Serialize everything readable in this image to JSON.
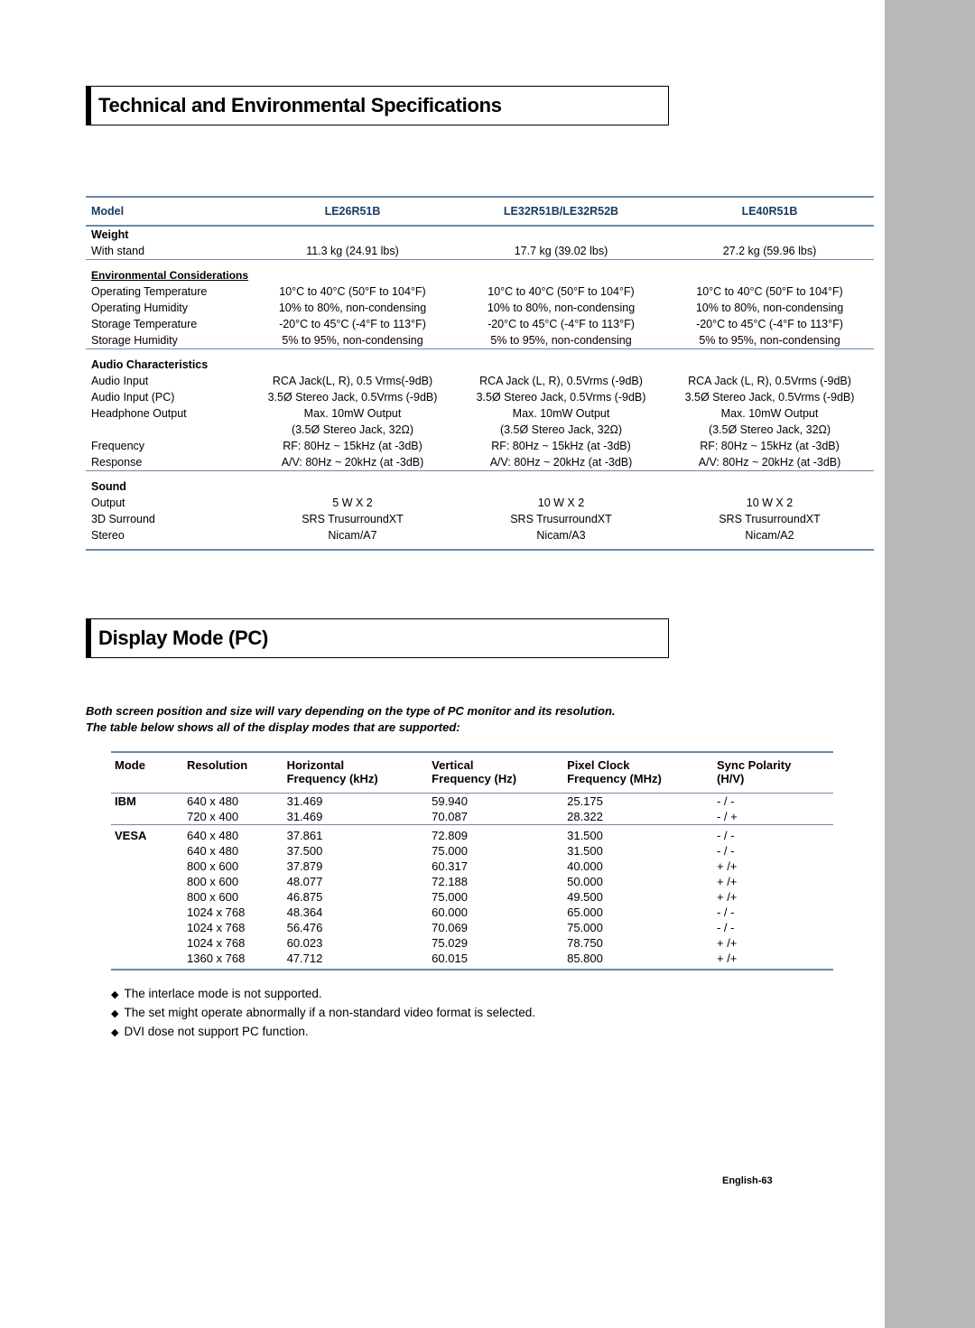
{
  "page": {
    "number": "English-63"
  },
  "section1": {
    "title": "Technical and Environmental Specifications",
    "headers": [
      "Model",
      "LE26R51B",
      "LE32R51B/LE32R52B",
      "LE40R51B"
    ],
    "groups": [
      {
        "type": "head",
        "title": "Weight",
        "rows": [
          {
            "label": "With stand",
            "vals": [
              "11.3 kg (24.91 lbs)",
              "17.7 kg (39.02 lbs)",
              "27.2 kg (59.96 lbs)"
            ]
          }
        ]
      },
      {
        "type": "subhead",
        "title": "Environmental Considerations",
        "rows": [
          {
            "label": "Operating Temperature",
            "vals": [
              "10°C to 40°C (50°F to 104°F)",
              "10°C to 40°C (50°F to 104°F)",
              "10°C to 40°C (50°F to 104°F)"
            ]
          },
          {
            "label": "Operating Humidity",
            "vals": [
              "10% to 80%, non-condensing",
              "10% to 80%, non-condensing",
              "10% to 80%, non-condensing"
            ]
          },
          {
            "label": "Storage Temperature",
            "vals": [
              "-20°C to 45°C (-4°F to 113°F)",
              "-20°C to 45°C (-4°F to 113°F)",
              "-20°C to 45°C (-4°F to 113°F)"
            ]
          },
          {
            "label": "Storage Humidity",
            "vals": [
              "5% to 95%, non-condensing",
              "5% to 95%, non-condensing",
              "5% to 95%, non-condensing"
            ]
          }
        ]
      },
      {
        "type": "head",
        "title": "Audio Characteristics",
        "rows": [
          {
            "label": "Audio Input",
            "vals": [
              "RCA Jack(L, R), 0.5 Vrms(-9dB)",
              "RCA Jack (L, R), 0.5Vrms (-9dB)",
              "RCA Jack (L, R), 0.5Vrms (-9dB)"
            ]
          },
          {
            "label": "Audio Input (PC)",
            "vals": [
              "3.5Ø Stereo Jack, 0.5Vrms (-9dB)",
              "3.5Ø Stereo Jack, 0.5Vrms (-9dB)",
              "3.5Ø Stereo Jack, 0.5Vrms (-9dB)"
            ]
          },
          {
            "label": "Headphone Output",
            "vals": [
              "Max. 10mW Output",
              "Max. 10mW Output",
              "Max. 10mW Output"
            ]
          },
          {
            "label": "",
            "vals": [
              "(3.5Ø Stereo Jack, 32Ω)",
              "(3.5Ø Stereo Jack, 32Ω)",
              "(3.5Ø Stereo Jack, 32Ω)"
            ]
          },
          {
            "label": "Frequency",
            "vals": [
              "RF: 80Hz ~ 15kHz (at -3dB)",
              "RF: 80Hz ~ 15kHz (at -3dB)",
              "RF: 80Hz ~ 15kHz (at -3dB)"
            ]
          },
          {
            "label": "Response",
            "vals": [
              "A/V: 80Hz ~ 20kHz (at -3dB)",
              "A/V: 80Hz ~ 20kHz (at -3dB)",
              "A/V: 80Hz ~ 20kHz (at -3dB)"
            ]
          }
        ]
      },
      {
        "type": "head",
        "title": "Sound",
        "rows": [
          {
            "label": "Output",
            "vals": [
              "5 W X 2",
              "10 W X 2",
              "10 W X 2"
            ]
          },
          {
            "label": "3D Surround",
            "vals": [
              "SRS TrusurroundXT",
              "SRS TrusurroundXT",
              "SRS TrusurroundXT"
            ]
          },
          {
            "label": "Stereo",
            "vals": [
              "Nicam/A7",
              "Nicam/A3",
              "Nicam/A2"
            ]
          }
        ]
      }
    ]
  },
  "section2": {
    "title": "Display Mode (PC)",
    "intro1": "Both screen position and size will vary depending on the type of PC monitor and its resolution.",
    "intro2": "The table below shows all of the display modes that are supported:",
    "headers": [
      {
        "l1": "Mode",
        "l2": ""
      },
      {
        "l1": "Resolution",
        "l2": ""
      },
      {
        "l1": "Horizontal",
        "l2": "Frequency (kHz)"
      },
      {
        "l1": "Vertical",
        "l2": "Frequency (Hz)"
      },
      {
        "l1": "Pixel Clock",
        "l2": "Frequency (MHz)"
      },
      {
        "l1": "Sync Polarity",
        "l2": "(H/V)"
      }
    ],
    "modes": [
      {
        "mode": "IBM",
        "rows": [
          [
            "640 x 480",
            "31.469",
            "59.940",
            "25.175",
            "- / -"
          ],
          [
            "720 x 400",
            "31.469",
            "70.087",
            "28.322",
            "- / +"
          ]
        ]
      },
      {
        "mode": "VESA",
        "rows": [
          [
            "640 x 480",
            "37.861",
            "72.809",
            "31.500",
            "- / -"
          ],
          [
            "640 x 480",
            "37.500",
            "75.000",
            "31.500",
            "- / -"
          ],
          [
            "800 x 600",
            "37.879",
            "60.317",
            "40.000",
            "+ /+"
          ],
          [
            "800 x 600",
            "48.077",
            "72.188",
            "50.000",
            "+ /+"
          ],
          [
            "800 x 600",
            "46.875",
            "75.000",
            "49.500",
            "+ /+"
          ],
          [
            "1024 x 768",
            "48.364",
            "60.000",
            "65.000",
            "- / -"
          ],
          [
            "1024 x 768",
            "56.476",
            "70.069",
            "75.000",
            "- / -"
          ],
          [
            "1024 x 768",
            "60.023",
            "75.029",
            "78.750",
            "+ /+"
          ],
          [
            "1360 x 768",
            "47.712",
            "60.015",
            "85.800",
            "+ /+"
          ]
        ]
      }
    ],
    "notes": [
      "The interlace mode is not supported.",
      "The set might operate abnormally if a non-standard video format is selected.",
      "DVI dose not support PC function."
    ]
  },
  "style": {
    "border_color": "#6a8aa8",
    "header_text_color": "#173a5e",
    "sidebar_color": "#b8b8b8",
    "background_color": "#ffffff"
  }
}
